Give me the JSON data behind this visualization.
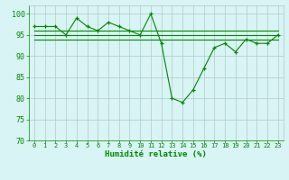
{
  "x": [
    0,
    1,
    2,
    3,
    4,
    5,
    6,
    7,
    8,
    9,
    10,
    11,
    12,
    13,
    14,
    15,
    16,
    17,
    18,
    19,
    20,
    21,
    22,
    23
  ],
  "line_main": [
    97,
    97,
    97,
    95,
    99,
    97,
    96,
    98,
    97,
    96,
    95,
    100,
    93,
    80,
    79,
    82,
    87,
    92,
    93,
    91,
    94,
    93,
    93,
    95
  ],
  "line_smooth1": [
    96,
    96,
    96,
    96,
    96,
    96,
    96,
    96,
    96,
    96,
    96,
    96,
    96,
    96,
    96,
    96,
    96,
    96,
    96,
    96,
    96,
    96,
    96,
    96
  ],
  "line_smooth2": [
    95,
    95,
    95,
    95,
    95,
    95,
    95,
    95,
    95,
    95,
    95,
    95,
    95,
    95,
    95,
    95,
    95,
    95,
    95,
    95,
    95,
    95,
    95,
    95
  ],
  "line_smooth3": [
    94,
    94,
    94,
    94,
    94,
    94,
    94,
    94,
    94,
    94,
    94,
    94,
    94,
    94,
    94,
    94,
    94,
    94,
    94,
    94,
    94,
    94,
    94,
    94
  ],
  "xlabel": "Humidité relative (%)",
  "ylim": [
    70,
    102
  ],
  "yticks": [
    70,
    75,
    80,
    85,
    90,
    95,
    100
  ],
  "line_color": "#008800",
  "bg_color": "#d8f4f4",
  "grid_color": "#b0c8c8"
}
